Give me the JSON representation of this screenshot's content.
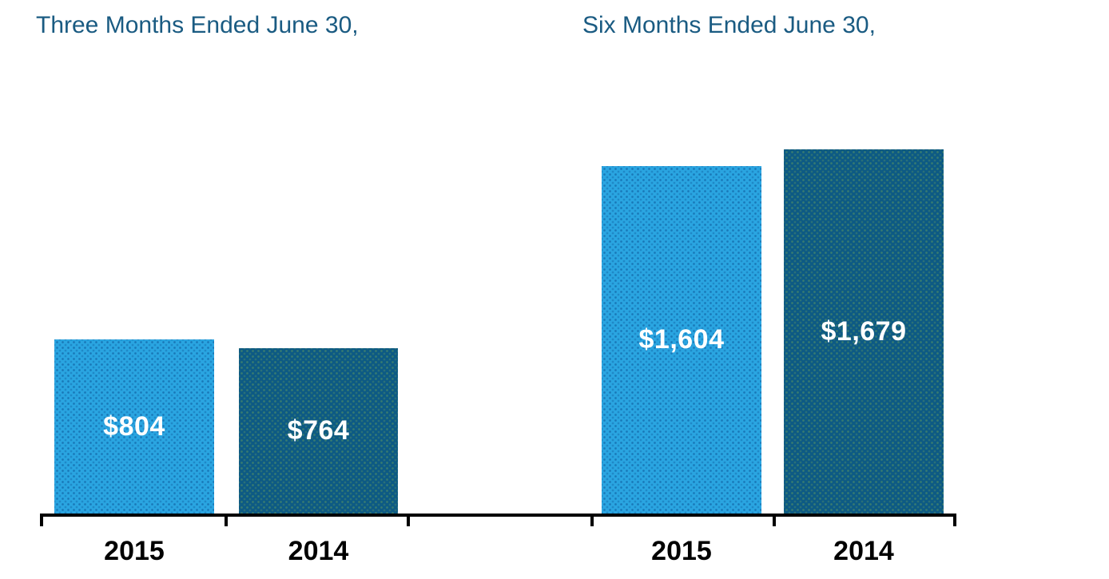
{
  "chart_data": {
    "type": "bar",
    "panels": [
      {
        "title": "Three Months Ended June 30,",
        "categories": [
          "2015",
          "2014"
        ],
        "values": [
          804,
          764
        ],
        "value_labels": [
          "$804",
          "$764"
        ]
      },
      {
        "title": "Six Months Ended June 30,",
        "categories": [
          "2015",
          "2014"
        ],
        "values": [
          1604,
          1679
        ],
        "value_labels": [
          "$1,604",
          "$1,679"
        ]
      }
    ],
    "series": [
      {
        "name": "2015",
        "color": "#2AA5E1"
      },
      {
        "name": "2014",
        "color": "#0D5A84"
      }
    ],
    "ylim": [
      0,
      1700
    ],
    "grid": false,
    "legend_position": "none",
    "y_axis_shown": false,
    "title_color": "#1A5B82",
    "value_label_color": "#FFFFFF",
    "category_label_color": "#000000",
    "axis_color": "#000000",
    "background_color": "#FFFFFF"
  }
}
